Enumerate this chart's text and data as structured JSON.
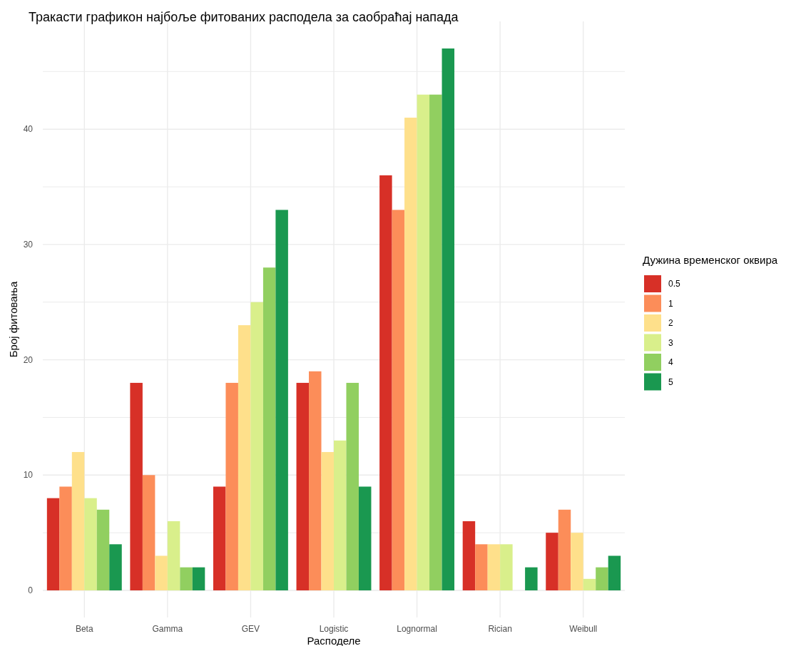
{
  "chart_data": {
    "type": "bar",
    "title": "Тракасти графикон најбоље фитованих расподела за саобраћај напада",
    "xlabel": "Расподеле",
    "ylabel": "Број фитовања",
    "legend_title": "Дужина временског оквира",
    "categories": [
      "Beta",
      "Gamma",
      "GEV",
      "Logistic",
      "Lognormal",
      "Rician",
      "Weibull"
    ],
    "series": [
      {
        "name": "0.5",
        "color": "#d73027",
        "values": [
          8,
          18,
          9,
          18,
          36,
          6,
          5
        ]
      },
      {
        "name": "1",
        "color": "#fc8d59",
        "values": [
          9,
          10,
          18,
          19,
          33,
          4,
          7
        ]
      },
      {
        "name": "2",
        "color": "#fee08b",
        "values": [
          12,
          3,
          23,
          12,
          41,
          4,
          5
        ]
      },
      {
        "name": "3",
        "color": "#d9ef8b",
        "values": [
          8,
          6,
          25,
          13,
          43,
          4,
          1
        ]
      },
      {
        "name": "4",
        "color": "#91cf60",
        "values": [
          7,
          2,
          28,
          18,
          43,
          0,
          2
        ]
      },
      {
        "name": "5",
        "color": "#1a9850",
        "values": [
          4,
          2,
          33,
          9,
          47,
          2,
          3
        ]
      }
    ],
    "ylim": [
      -2.35,
      49.35
    ],
    "yticks": [
      0,
      {
        "value": 5,
        "label": null
      },
      10,
      {
        "value": 15,
        "label": null
      },
      20,
      {
        "value": 25,
        "label": null
      },
      30,
      {
        "value": 35,
        "label": null
      },
      40,
      {
        "value": 45,
        "label": null
      }
    ],
    "grid": true,
    "legend": "right"
  }
}
